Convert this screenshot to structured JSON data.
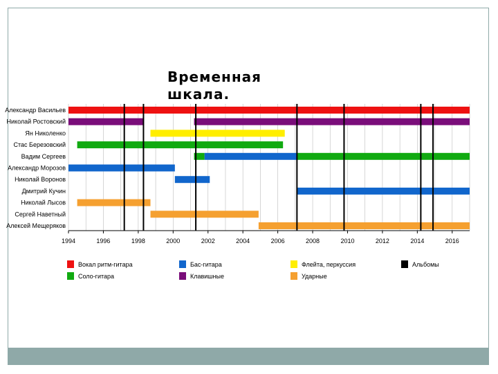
{
  "slide": {
    "title": "Временная шкала."
  },
  "chart_data": {
    "type": "timeline",
    "xlim": [
      1994,
      2017
    ],
    "xticks": [
      "1994",
      "1996",
      "1998",
      "2000",
      "2002",
      "2004",
      "2006",
      "2008",
      "2010",
      "2012",
      "2014",
      "2016"
    ],
    "members": [
      "Александр Васильев",
      "Николай Ростовский",
      "Ян Николенко",
      "Стас Березовский",
      "Вадим Сергеев",
      "Александр Морозов",
      "Николай Воронов",
      "Дмитрий Кучин",
      "Николай Лысов",
      "Сергей Наветный",
      "Алексей Мещеряков"
    ],
    "roles": [
      {
        "key": "vocal",
        "label": "Вокал ритм-гитара",
        "color": "#ee1111"
      },
      {
        "key": "lead",
        "label": "Соло-гитара",
        "color": "#11aa11"
      },
      {
        "key": "bass",
        "label": "Бас-гитара",
        "color": "#1166cc"
      },
      {
        "key": "keys",
        "label": "Клавишные",
        "color": "#7a0d7a"
      },
      {
        "key": "flute",
        "label": "Флейта, перкуссия",
        "color": "#ffee00"
      },
      {
        "key": "drums",
        "label": "Ударные",
        "color": "#f5a030"
      },
      {
        "key": "albums",
        "label": "Альбомы",
        "color": "#000000"
      }
    ],
    "albums": [
      1997.2,
      1998.3,
      2001.3,
      2007.1,
      2009.8,
      2014.2,
      2014.9
    ],
    "bars": [
      {
        "member": 0,
        "role": "vocal",
        "start": 1994.0,
        "end": 2017.0
      },
      {
        "member": 1,
        "role": "keys",
        "start": 1994.0,
        "end": 1998.3
      },
      {
        "member": 1,
        "role": "keys",
        "start": 2001.2,
        "end": 2017.0
      },
      {
        "member": 2,
        "role": "flute",
        "start": 1998.7,
        "end": 2006.4
      },
      {
        "member": 3,
        "role": "lead",
        "start": 1994.5,
        "end": 2006.3
      },
      {
        "member": 4,
        "role": "lead",
        "start": 2001.2,
        "end": 2001.8
      },
      {
        "member": 4,
        "role": "bass",
        "start": 2001.8,
        "end": 2007.1
      },
      {
        "member": 4,
        "role": "lead",
        "start": 2007.1,
        "end": 2017.0
      },
      {
        "member": 5,
        "role": "bass",
        "start": 1994.0,
        "end": 2000.1
      },
      {
        "member": 6,
        "role": "bass",
        "start": 2000.1,
        "end": 2002.1
      },
      {
        "member": 7,
        "role": "bass",
        "start": 2007.1,
        "end": 2017.0
      },
      {
        "member": 8,
        "role": "drums",
        "start": 1994.5,
        "end": 1998.7
      },
      {
        "member": 9,
        "role": "drums",
        "start": 1998.7,
        "end": 2004.9
      },
      {
        "member": 10,
        "role": "drums",
        "start": 2004.9,
        "end": 2017.0
      }
    ]
  }
}
